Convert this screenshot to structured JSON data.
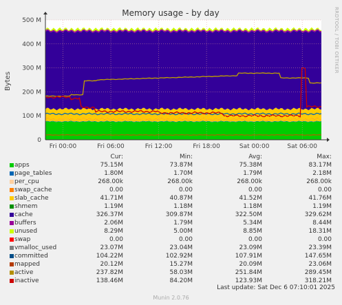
{
  "chart_data": {
    "type": "area",
    "title": "Memory usage - by day",
    "ylabel": "Bytes",
    "side_label": "RRDTOOL / TOBI OETIKER",
    "ylim": [
      0,
      500000000
    ],
    "y_ticks": [
      0,
      100000000,
      200000000,
      300000000,
      400000000,
      500000000
    ],
    "y_tick_labels": [
      "0",
      "100 M",
      "200 M",
      "300 M",
      "400 M",
      "500 M"
    ],
    "x_hours": [
      0,
      6,
      12,
      18,
      24,
      30
    ],
    "x_tick_labels": [
      "Fri 00:00",
      "Fri 06:00",
      "Fri 12:00",
      "Fri 18:00",
      "Sat 00:00",
      "Sat 06:00"
    ],
    "xlim_hours": [
      -2.2,
      32.4
    ],
    "stack_colors": [
      "#00cc00",
      "#0066b3",
      "#ffcc00",
      "#ff8000",
      "#ffcc00",
      "#330099",
      "#990099",
      "#ccff00"
    ],
    "line_colors": {
      "committed": "#0066b3",
      "mapped": "#aa6600",
      "active": "#c0a000",
      "inactive": "#cc0000"
    },
    "series_stats": {
      "apps": [
        73.87,
        75.38,
        83.17
      ],
      "page_tables": [
        1.7,
        1.79,
        2.18
      ],
      "swap_cache": [
        0,
        0,
        0
      ],
      "slab_cache": [
        40.87,
        41.52,
        41.76
      ],
      "cache": [
        309.87,
        322.5,
        329.62
      ],
      "buffers": [
        1.79,
        5.34,
        8.44
      ],
      "unused": [
        5.0,
        8.85,
        18.31
      ],
      "committed": [
        102.92,
        107.91,
        147.65
      ],
      "mapped": [
        15.27,
        20.09,
        23.06
      ],
      "active": [
        58.03,
        251.84,
        289.45
      ],
      "inactive": [
        84.2,
        123.93,
        318.21
      ]
    }
  },
  "legend": {
    "headers": {
      "cur": "Cur:",
      "min": "Min:",
      "avg": "Avg:",
      "max": "Max:"
    },
    "rows": [
      {
        "name": "apps",
        "color": "#00cc00",
        "cur": "75.15M",
        "min": "73.87M",
        "avg": "75.38M",
        "max": "83.17M"
      },
      {
        "name": "page_tables",
        "color": "#0066b3",
        "cur": "1.80M",
        "min": "1.70M",
        "avg": "1.79M",
        "max": "2.18M"
      },
      {
        "name": "per_cpu",
        "color": "#ffd0a0",
        "cur": "268.00k",
        "min": "268.00k",
        "avg": "268.00k",
        "max": "268.00k"
      },
      {
        "name": "swap_cache",
        "color": "#ff8000",
        "cur": "0.00",
        "min": "0.00",
        "avg": "0.00",
        "max": "0.00"
      },
      {
        "name": "slab_cache",
        "color": "#ffcc00",
        "cur": "41.71M",
        "min": "40.87M",
        "avg": "41.52M",
        "max": "41.76M"
      },
      {
        "name": "shmem",
        "color": "#008f00",
        "cur": "1.19M",
        "min": "1.18M",
        "avg": "1.18M",
        "max": "1.19M"
      },
      {
        "name": "cache",
        "color": "#330099",
        "cur": "326.37M",
        "min": "309.87M",
        "avg": "322.50M",
        "max": "329.62M"
      },
      {
        "name": "buffers",
        "color": "#990099",
        "cur": "2.06M",
        "min": "1.79M",
        "avg": "5.34M",
        "max": "8.44M"
      },
      {
        "name": "unused",
        "color": "#ccff00",
        "cur": "8.29M",
        "min": "5.00M",
        "avg": "8.85M",
        "max": "18.31M"
      },
      {
        "name": "swap",
        "color": "#ff0000",
        "cur": "0.00",
        "min": "0.00",
        "avg": "0.00",
        "max": "0.00"
      },
      {
        "name": "vmalloc_used",
        "color": "#808080",
        "cur": "23.07M",
        "min": "23.04M",
        "avg": "23.09M",
        "max": "23.39M"
      },
      {
        "name": "committed",
        "color": "#004d87",
        "cur": "104.22M",
        "min": "102.92M",
        "avg": "107.91M",
        "max": "147.65M"
      },
      {
        "name": "mapped",
        "color": "#b33a00",
        "cur": "20.12M",
        "min": "15.27M",
        "avg": "20.09M",
        "max": "23.06M"
      },
      {
        "name": "active",
        "color": "#b38f00",
        "cur": "237.82M",
        "min": "58.03M",
        "avg": "251.84M",
        "max": "289.45M"
      },
      {
        "name": "inactive",
        "color": "#cc0000",
        "cur": "138.46M",
        "min": "84.20M",
        "avg": "123.93M",
        "max": "318.21M"
      }
    ]
  },
  "last_update": "Last update: Sat Dec  6 07:10:01 2025",
  "footer": "Munin 2.0.76"
}
